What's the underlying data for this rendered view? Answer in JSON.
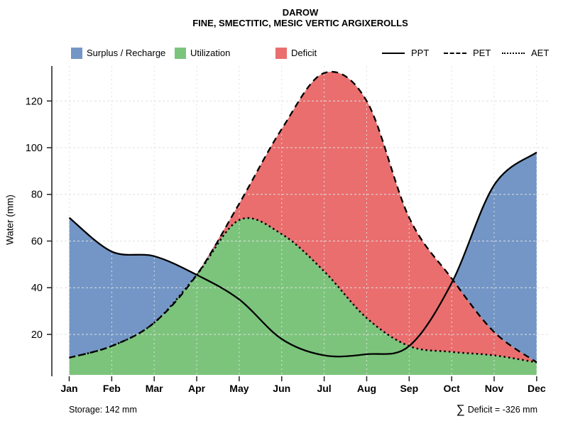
{
  "title": {
    "line1": "DAROW",
    "line2": "FINE, SMECTITIC, MESIC VERTIC ARGIXEROLLS"
  },
  "legend": {
    "fills": [
      {
        "label": "Surplus / Recharge",
        "color": "#7396C6"
      },
      {
        "label": "Utilization",
        "color": "#7CC47C"
      },
      {
        "label": "Deficit",
        "color": "#EA6E6E"
      }
    ],
    "lines": [
      {
        "label": "PPT",
        "style": "solid"
      },
      {
        "label": "PET",
        "style": "dashed"
      },
      {
        "label": "AET",
        "style": "dotted"
      }
    ]
  },
  "axes": {
    "y_label": "Water (mm)",
    "y_ticks": [
      20,
      40,
      60,
      80,
      100,
      120
    ],
    "x_ticks": [
      "Jan",
      "Feb",
      "Mar",
      "Apr",
      "May",
      "Jun",
      "Jul",
      "Aug",
      "Sep",
      "Oct",
      "Nov",
      "Dec"
    ]
  },
  "annotations": {
    "storage": "Storage: 142 mm",
    "sigma": "∑",
    "deficit_text": "Deficit = -326 mm"
  },
  "chart_data": {
    "type": "area",
    "title": "DAROW — FINE, SMECTITIC, MESIC VERTIC ARGIXEROLLS",
    "xlabel": "",
    "ylabel": "Water (mm)",
    "categories": [
      "Jan",
      "Feb",
      "Mar",
      "Apr",
      "May",
      "Jun",
      "Jul",
      "Aug",
      "Sep",
      "Oct",
      "Nov",
      "Dec"
    ],
    "y_range_mm": [
      2,
      135
    ],
    "grid": true,
    "legend_position": "top",
    "series": [
      {
        "name": "PPT",
        "line": "solid",
        "values": [
          70,
          55.5,
          53.5,
          45.5,
          35,
          18,
          11,
          11.5,
          15,
          42,
          84,
          98
        ]
      },
      {
        "name": "PET",
        "line": "dashed",
        "values": [
          10,
          15,
          25,
          45.5,
          76,
          108,
          132,
          120,
          70,
          44,
          21,
          8
        ]
      },
      {
        "name": "AET",
        "line": "dotted",
        "values": [
          10,
          15,
          25,
          45.5,
          69,
          63,
          47,
          27,
          15,
          12.5,
          11,
          8
        ]
      }
    ],
    "areas": [
      {
        "name": "Surplus / Recharge",
        "color": "#7396C6",
        "between": [
          "PPT",
          "PET"
        ]
      },
      {
        "name": "Utilization",
        "color": "#7CC47C",
        "under": "AET"
      },
      {
        "name": "Deficit",
        "color": "#EA6E6E",
        "between": [
          "PET",
          "AET"
        ],
        "from_month": "Apr"
      }
    ],
    "storage_mm": 142,
    "deficit_sum_mm": -326
  }
}
